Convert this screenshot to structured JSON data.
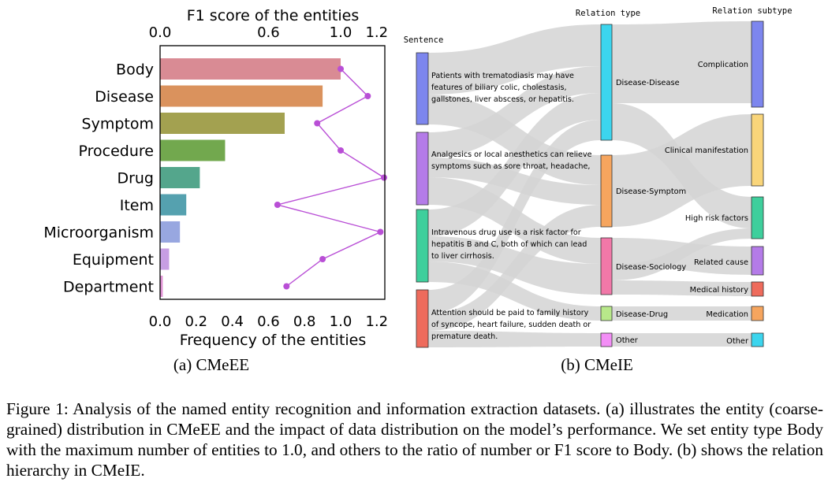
{
  "chart_data": {
    "type": "bar",
    "top_axis_label": "F1 score of the entities",
    "top_ticks": [
      "0.0",
      "0.6",
      "1.0",
      "1.2"
    ],
    "top_tick_values": [
      0.0,
      0.6,
      1.0,
      1.2
    ],
    "xlabel": "Frequency of the entities",
    "bottom_ticks": [
      "0.0",
      "0.2",
      "0.4",
      "0.6",
      "0.8",
      "1.0",
      "1.2"
    ],
    "bottom_tick_values": [
      0.0,
      0.2,
      0.4,
      0.6,
      0.8,
      1.0,
      1.2
    ],
    "xlim": [
      0,
      1.25
    ],
    "categories": [
      "Body",
      "Disease",
      "Symptom",
      "Procedure",
      "Drug",
      "Item",
      "Microorganism",
      "Equipment",
      "Department"
    ],
    "frequency": [
      1.0,
      0.9,
      0.69,
      0.36,
      0.22,
      0.145,
      0.11,
      0.05,
      0.015
    ],
    "f1_score": [
      1.0,
      1.15,
      0.87,
      1.0,
      1.25,
      0.65,
      1.22,
      0.9,
      0.7
    ],
    "bar_colors": [
      "#d98b94",
      "#da925d",
      "#a3a150",
      "#72a84e",
      "#54a68c",
      "#55a1af",
      "#98a7e0",
      "#c79ee3",
      "#df93d4"
    ],
    "line_color": "#b94fd6",
    "subcaption": "(a) CMeEE"
  },
  "sankey": {
    "header_sentence": "Sentence",
    "header_type": "Relation type",
    "header_subtype": "Relation subtype",
    "sentences": [
      {
        "lines": [
          "Patients with trematodiasis may have",
          "features of biliary colic, cholestasis,",
          "gallstones, liver abscess, or hepatitis."
        ],
        "color": "#7d86ee"
      },
      {
        "lines": [
          "Analgesics or local anesthetics can relieve",
          "symptoms such as sore throat, headache,"
        ],
        "color": "#b47be8"
      },
      {
        "lines": [
          "Intravenous drug use is a risk factor for",
          "hepatitis B and C, both of which can lead",
          "to liver cirrhosis."
        ],
        "color": "#3ecf9c"
      },
      {
        "lines": [
          "Attention should be paid to family history",
          "of syncope, heart failure, sudden death or",
          "premature death."
        ],
        "color": "#ee6b5c"
      }
    ],
    "types": [
      {
        "label": "Disease-Disease",
        "color": "#3cd5ee"
      },
      {
        "label": "Disease-Symptom",
        "color": "#f6a55e"
      },
      {
        "label": "Disease-Sociology",
        "color": "#f178a8"
      },
      {
        "label": "Disease-Drug",
        "color": "#b8e88a"
      },
      {
        "label": "Other",
        "color": "#f38ef6"
      }
    ],
    "subtypes": [
      {
        "label": "Complication",
        "color": "#7d86ee"
      },
      {
        "label": "Clinical manifestation",
        "color": "#f9d57a"
      },
      {
        "label": "High risk factors",
        "color": "#3ecf9c"
      },
      {
        "label": "Related cause",
        "color": "#b47be8"
      },
      {
        "label": "Medical history",
        "color": "#ee6b5c"
      },
      {
        "label": "Medication",
        "color": "#f6a55e"
      },
      {
        "label": "Other",
        "color": "#3cd5ee"
      }
    ],
    "link_color": "#d4d4d4",
    "subcaption": "(b) CMeIE"
  },
  "caption": "Figure 1:  Analysis of the named entity recognition and information extraction datasets. (a) illustrates the entity (coarse-grained) distribution in CMeEE and the impact of data distribution on the model’s performance. We set entity type Body with the maximum number of entities to 1.0, and others to the ratio of number or F1 score to Body. (b) shows the relation hierarchy in CMeIE."
}
